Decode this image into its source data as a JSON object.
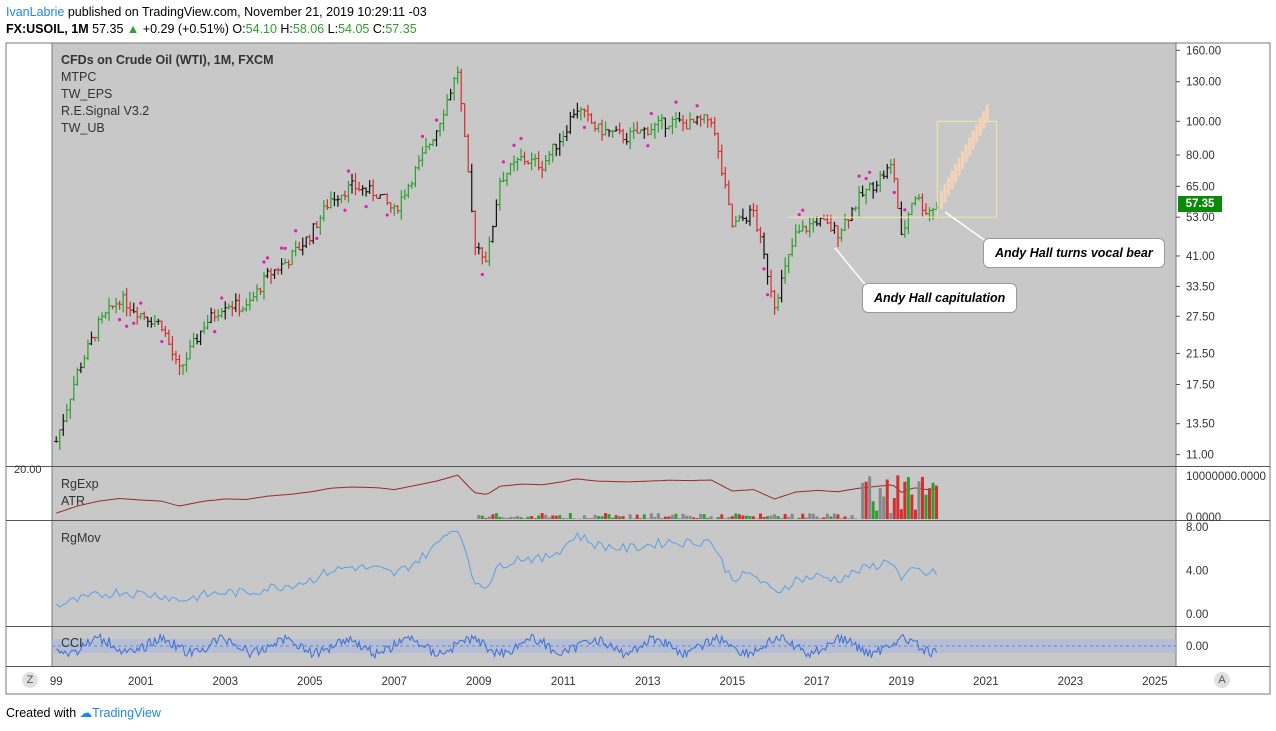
{
  "header": {
    "author": "IvanLabrie",
    "published": "published on TradingView.com, November 21, 2019 10:29:11 -03",
    "symbol": "FX:USOIL, 1M",
    "last": "57.35",
    "change_arrow": "▲",
    "change": "+0.29 (+0.51%)",
    "o_label": "O:",
    "o_value": "54.10",
    "h_label": "H:",
    "h_value": "58.06",
    "l_label": "L:",
    "l_value": "54.05",
    "c_label": "C:",
    "c_value": "57.35"
  },
  "legend": {
    "main": "CFDs on Crude Oil (WTI), 1M, FXCM",
    "indicators": [
      "MTPC",
      "TW_EPS",
      "R.E.Signal V3.2",
      "TW_UB"
    ]
  },
  "panes": {
    "rgexp_label": "RgExp",
    "atr_label": "ATR",
    "rgexp_left_tick": "20.00",
    "rgmov_label": "RgMov",
    "cci_label": "CCI"
  },
  "price_tag": "57.35",
  "callouts": {
    "bear": "Andy Hall turns vocal bear",
    "capitulation": "Andy Hall capitulation"
  },
  "buttons": {
    "z": "Z",
    "a": "A"
  },
  "footer": {
    "created_with": "Created with",
    "brand": "TradingView"
  },
  "colors": {
    "up": "#2e9e2e",
    "down": "#d32f2f",
    "rgmov": "#5aa0e8",
    "cci": "#3b6fd6",
    "rgexp": "#9c2a2a",
    "bg": "#c8c8c8"
  },
  "chart_data": {
    "type": "line",
    "title": "CFDs on Crude Oil (WTI), 1M, FXCM",
    "x_tick_labels": [
      "99",
      "2001",
      "2003",
      "2005",
      "2007",
      "2009",
      "2011",
      "2013",
      "2015",
      "2017",
      "2019",
      "2021",
      "2023",
      "2025"
    ],
    "y_axis_scale": "log",
    "y_tick_labels": [
      "160.00",
      "130.00",
      "100.00",
      "80.00",
      "65.00",
      "53.00",
      "41.00",
      "33.50",
      "27.50",
      "21.50",
      "17.50",
      "13.50",
      "11.00"
    ],
    "series": [
      {
        "x": [
          1999.0,
          1999.5,
          2000.0,
          2000.5,
          2001.0,
          2001.5,
          2001.9,
          2002.5,
          2003.0,
          2003.5,
          2004.0,
          2004.5,
          2005.0,
          2005.5,
          2006.0,
          2006.6,
          2007.0,
          2007.5,
          2008.0,
          2008.5,
          2008.9,
          2009.2,
          2009.5,
          2010.0,
          2010.5,
          2011.0,
          2011.3,
          2011.8,
          2012.5,
          2013.0,
          2013.5,
          2014.0,
          2014.5,
          2015.0,
          2015.5,
          2016.0,
          2016.5,
          2017.0,
          2017.5,
          2018.0,
          2018.8,
          2019.0,
          2019.3,
          2019.6,
          2019.85
        ],
        "values": [
          12,
          19,
          26,
          31,
          28,
          26,
          19,
          26,
          30,
          29,
          36,
          40,
          47,
          60,
          65,
          62,
          55,
          72,
          95,
          140,
          45,
          40,
          68,
          78,
          75,
          92,
          110,
          95,
          90,
          95,
          100,
          98,
          102,
          50,
          55,
          30,
          47,
          52,
          48,
          60,
          75,
          46,
          62,
          55,
          57.35
        ]
      }
    ],
    "projection_y_range": [
      53,
      100
    ],
    "subpanes": {
      "RgExp_ATR": {
        "right_ticks": [
          "10000000.0000",
          "0.0000"
        ]
      },
      "RgMov": {
        "right_ticks": [
          "8.00",
          "4.00",
          "0.00"
        ]
      },
      "CCI": {
        "right_ticks": [
          "0.00"
        ]
      }
    }
  }
}
